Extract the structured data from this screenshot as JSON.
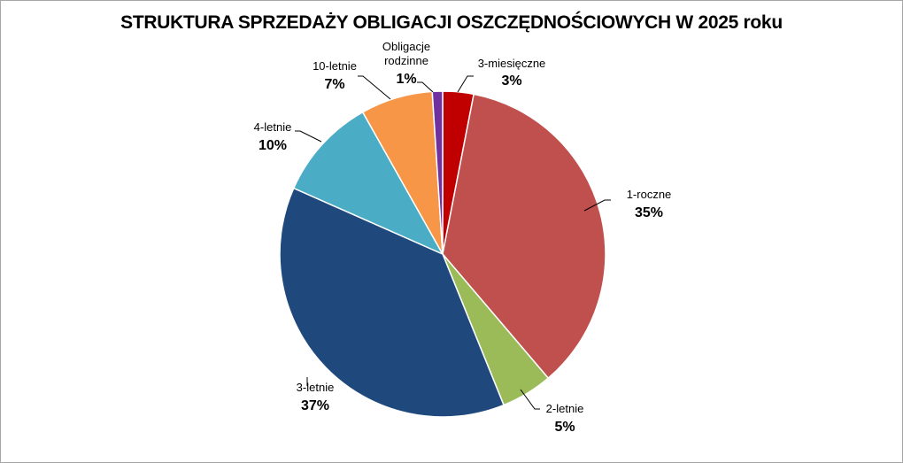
{
  "chart_data": {
    "type": "pie",
    "title": "STRUKTURA SPRZEDAŻY OBLIGACJI OSZCZĘDNOŚCIOWYCH W 2025 roku",
    "start_angle": "12 o'clock, clockwise",
    "categories": [
      "3-miesięczne",
      "1-roczne",
      "2-letnie",
      "3-letnie",
      "4-letnie",
      "10-letnie",
      "Obligacje rodzinne"
    ],
    "values": [
      3,
      35,
      5,
      37,
      10,
      7,
      1
    ],
    "labels": [
      "3%",
      "35%",
      "5%",
      "37%",
      "10%",
      "7%",
      "1%"
    ],
    "colors": [
      "#C00000",
      "#C0504D",
      "#9BBB59",
      "#1F497D",
      "#4BACC6",
      "#F79646",
      "#7030A0"
    ],
    "legend": "none (data labels with leader lines)"
  },
  "title": "STRUKTURA SPRZEDAŻY OBLIGACJI OSZCZĘDNOŚCIOWYCH W 2025 roku",
  "labels": {
    "m3": {
      "name": "3-miesięczne",
      "pct": "3%"
    },
    "y1": {
      "name": "1-roczne",
      "pct": "35%"
    },
    "y2": {
      "name": "2-letnie",
      "pct": "5%"
    },
    "y3": {
      "name": "3-letnie",
      "pct": "37%"
    },
    "y4": {
      "name": "4-letnie",
      "pct": "10%"
    },
    "y10": {
      "name": "10-letnie",
      "pct": "7%"
    },
    "rod": {
      "name1": "Obligacje",
      "name2": "rodzinne",
      "pct": "1%"
    }
  }
}
